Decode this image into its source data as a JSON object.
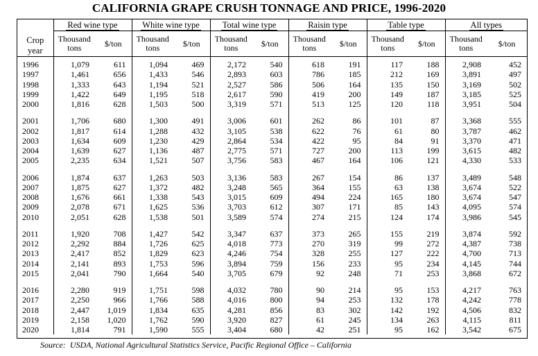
{
  "title": "CALIFORNIA GRAPE CRUSH TONNAGE AND PRICE, 1996-2020",
  "year_header": [
    "Crop",
    "year"
  ],
  "groups": [
    {
      "label": "Red wine type"
    },
    {
      "label": "White wine type"
    },
    {
      "label": "Total wine type"
    },
    {
      "label": "Raisin type"
    },
    {
      "label": "Table type"
    },
    {
      "label": "All types"
    }
  ],
  "sub_headers": {
    "tons_line1": "Thousand",
    "tons_line2": "tons",
    "price": "$/ton"
  },
  "blocks": [
    [
      [
        "1996",
        "1,079",
        "611",
        "1,094",
        "469",
        "2,172",
        "540",
        "618",
        "191",
        "117",
        "188",
        "2,908",
        "452"
      ],
      [
        "1997",
        "1,461",
        "656",
        "1,433",
        "546",
        "2,893",
        "603",
        "786",
        "185",
        "212",
        "169",
        "3,891",
        "497"
      ],
      [
        "1998",
        "1,333",
        "643",
        "1,194",
        "521",
        "2,527",
        "586",
        "506",
        "164",
        "135",
        "150",
        "3,169",
        "502"
      ],
      [
        "1999",
        "1,422",
        "649",
        "1,195",
        "518",
        "2,617",
        "590",
        "419",
        "200",
        "149",
        "187",
        "3,185",
        "525"
      ],
      [
        "2000",
        "1,816",
        "628",
        "1,503",
        "500",
        "3,319",
        "571",
        "513",
        "125",
        "120",
        "118",
        "3,951",
        "504"
      ]
    ],
    [
      [
        "2001",
        "1,706",
        "680",
        "1,300",
        "491",
        "3,006",
        "601",
        "262",
        "86",
        "101",
        "87",
        "3,368",
        "555"
      ],
      [
        "2002",
        "1,817",
        "614",
        "1,288",
        "432",
        "3,105",
        "538",
        "622",
        "76",
        "61",
        "80",
        "3,787",
        "462"
      ],
      [
        "2003",
        "1,634",
        "609",
        "1,230",
        "429",
        "2,864",
        "534",
        "422",
        "95",
        "84",
        "91",
        "3,370",
        "471"
      ],
      [
        "2004",
        "1,639",
        "627",
        "1,136",
        "487",
        "2,775",
        "571",
        "727",
        "200",
        "113",
        "199",
        "3,615",
        "482"
      ],
      [
        "2005",
        "2,235",
        "634",
        "1,521",
        "507",
        "3,756",
        "583",
        "467",
        "164",
        "106",
        "121",
        "4,330",
        "533"
      ]
    ],
    [
      [
        "2006",
        "1,874",
        "637",
        "1,263",
        "503",
        "3,136",
        "583",
        "267",
        "154",
        "86",
        "137",
        "3,489",
        "548"
      ],
      [
        "2007",
        "1,875",
        "627",
        "1,372",
        "482",
        "3,248",
        "565",
        "364",
        "155",
        "63",
        "138",
        "3,674",
        "522"
      ],
      [
        "2008",
        "1,676",
        "661",
        "1,338",
        "543",
        "3,015",
        "609",
        "494",
        "224",
        "165",
        "180",
        "3,674",
        "547"
      ],
      [
        "2009",
        "2,078",
        "671",
        "1,625",
        "536",
        "3,703",
        "612",
        "307",
        "171",
        "85",
        "143",
        "4,095",
        "574"
      ],
      [
        "2010",
        "2,051",
        "628",
        "1,538",
        "501",
        "3,589",
        "574",
        "274",
        "215",
        "124",
        "174",
        "3,986",
        "545"
      ]
    ],
    [
      [
        "2011",
        "1,920",
        "708",
        "1,427",
        "542",
        "3,347",
        "637",
        "373",
        "265",
        "155",
        "219",
        "3,874",
        "592"
      ],
      [
        "2012",
        "2,292",
        "884",
        "1,726",
        "625",
        "4,018",
        "773",
        "270",
        "319",
        "99",
        "272",
        "4,387",
        "738"
      ],
      [
        "2013",
        "2,417",
        "852",
        "1,829",
        "623",
        "4,246",
        "754",
        "328",
        "255",
        "127",
        "222",
        "4,700",
        "713"
      ],
      [
        "2014",
        "2,141",
        "893",
        "1,753",
        "596",
        "3,894",
        "759",
        "156",
        "233",
        "95",
        "234",
        "4,145",
        "744"
      ],
      [
        "2015",
        "2,041",
        "790",
        "1,664",
        "540",
        "3,705",
        "679",
        "92",
        "248",
        "71",
        "253",
        "3,868",
        "672"
      ]
    ],
    [
      [
        "2016",
        "2,280",
        "919",
        "1,751",
        "598",
        "4,032",
        "780",
        "90",
        "214",
        "95",
        "153",
        "4,217",
        "763"
      ],
      [
        "2017",
        "2,250",
        "966",
        "1,766",
        "588",
        "4,016",
        "800",
        "94",
        "253",
        "132",
        "178",
        "4,242",
        "778"
      ],
      [
        "2018",
        "2,447",
        "1,019",
        "1,834",
        "635",
        "4,281",
        "856",
        "83",
        "302",
        "142",
        "192",
        "4,506",
        "832"
      ],
      [
        "2019",
        "2,158",
        "1,020",
        "1,762",
        "590",
        "3,920",
        "827",
        "61",
        "245",
        "134",
        "263",
        "4,115",
        "811"
      ],
      [
        "2020",
        "1,814",
        "791",
        "1,590",
        "555",
        "3,404",
        "680",
        "42",
        "251",
        "95",
        "162",
        "3,542",
        "675"
      ]
    ]
  ],
  "source": {
    "label": "Source:",
    "text": "USDA, National Agricultural Statistics Service, Pacific Regional Office – California"
  }
}
